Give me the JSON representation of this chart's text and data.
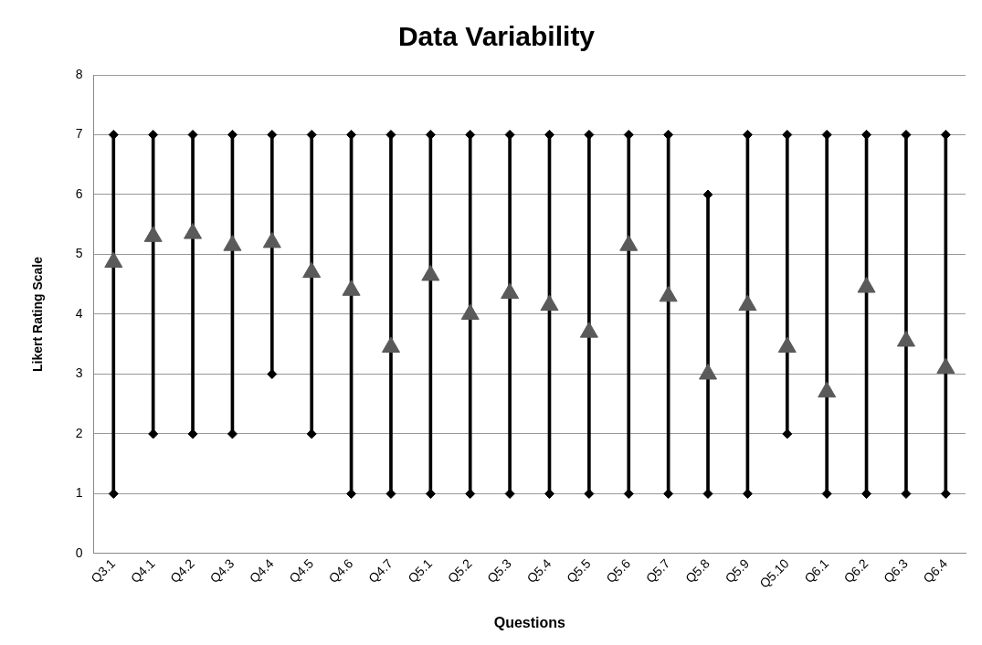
{
  "chart_data": {
    "type": "scatter",
    "title": "Data Variability",
    "xlabel": "Questions",
    "ylabel": "Likert Rating Scale",
    "categories": [
      "Q3.1",
      "Q4.1",
      "Q4.2",
      "Q4.3",
      "Q4.4",
      "Q4.5",
      "Q4.6",
      "Q4.7",
      "Q5.1",
      "Q5.2",
      "Q5.3",
      "Q5.4",
      "Q5.5",
      "Q5.6",
      "Q5.7",
      "Q5.8",
      "Q5.9",
      "Q5.10",
      "Q6.1",
      "Q6.2",
      "Q6.3",
      "Q6.4"
    ],
    "series": [
      {
        "type": "bar",
        "color": "#000000",
        "base": [
          1,
          2,
          2,
          2,
          3,
          2,
          1,
          1,
          1,
          1,
          1,
          1,
          1,
          1,
          1,
          1,
          1,
          2,
          1,
          1,
          1,
          1
        ],
        "values": [
          6,
          5,
          5,
          5,
          4,
          5,
          6,
          6,
          6,
          6,
          6,
          6,
          6,
          6,
          6,
          5,
          6,
          5,
          6,
          6,
          6,
          6
        ]
      },
      {
        "color": "#000000",
        "marker": "diamond",
        "values": [
          7,
          7,
          7,
          7,
          7,
          7,
          7,
          7,
          7,
          7,
          7,
          7,
          7,
          7,
          7,
          6,
          7,
          7,
          7,
          7,
          7,
          7
        ]
      },
      {
        "color": "#000000",
        "marker": "diamond",
        "values": [
          1,
          2,
          2,
          2,
          3,
          2,
          1,
          1,
          1,
          1,
          1,
          1,
          1,
          1,
          1,
          1,
          1,
          2,
          1,
          1,
          1,
          1
        ]
      },
      {
        "color": "#5a5a5a",
        "marker": "triangle",
        "values": [
          4.87,
          5.3,
          5.35,
          5.15,
          5.2,
          4.7,
          4.4,
          3.45,
          4.65,
          4.0,
          4.35,
          4.15,
          3.7,
          5.15,
          4.3,
          3.0,
          4.15,
          3.45,
          2.7,
          4.45,
          3.55,
          3.1
        ]
      }
    ],
    "ylim": [
      0,
      8
    ],
    "yticks": [
      0,
      1,
      2,
      3,
      4,
      5,
      6,
      7,
      8
    ],
    "grid": "y"
  }
}
